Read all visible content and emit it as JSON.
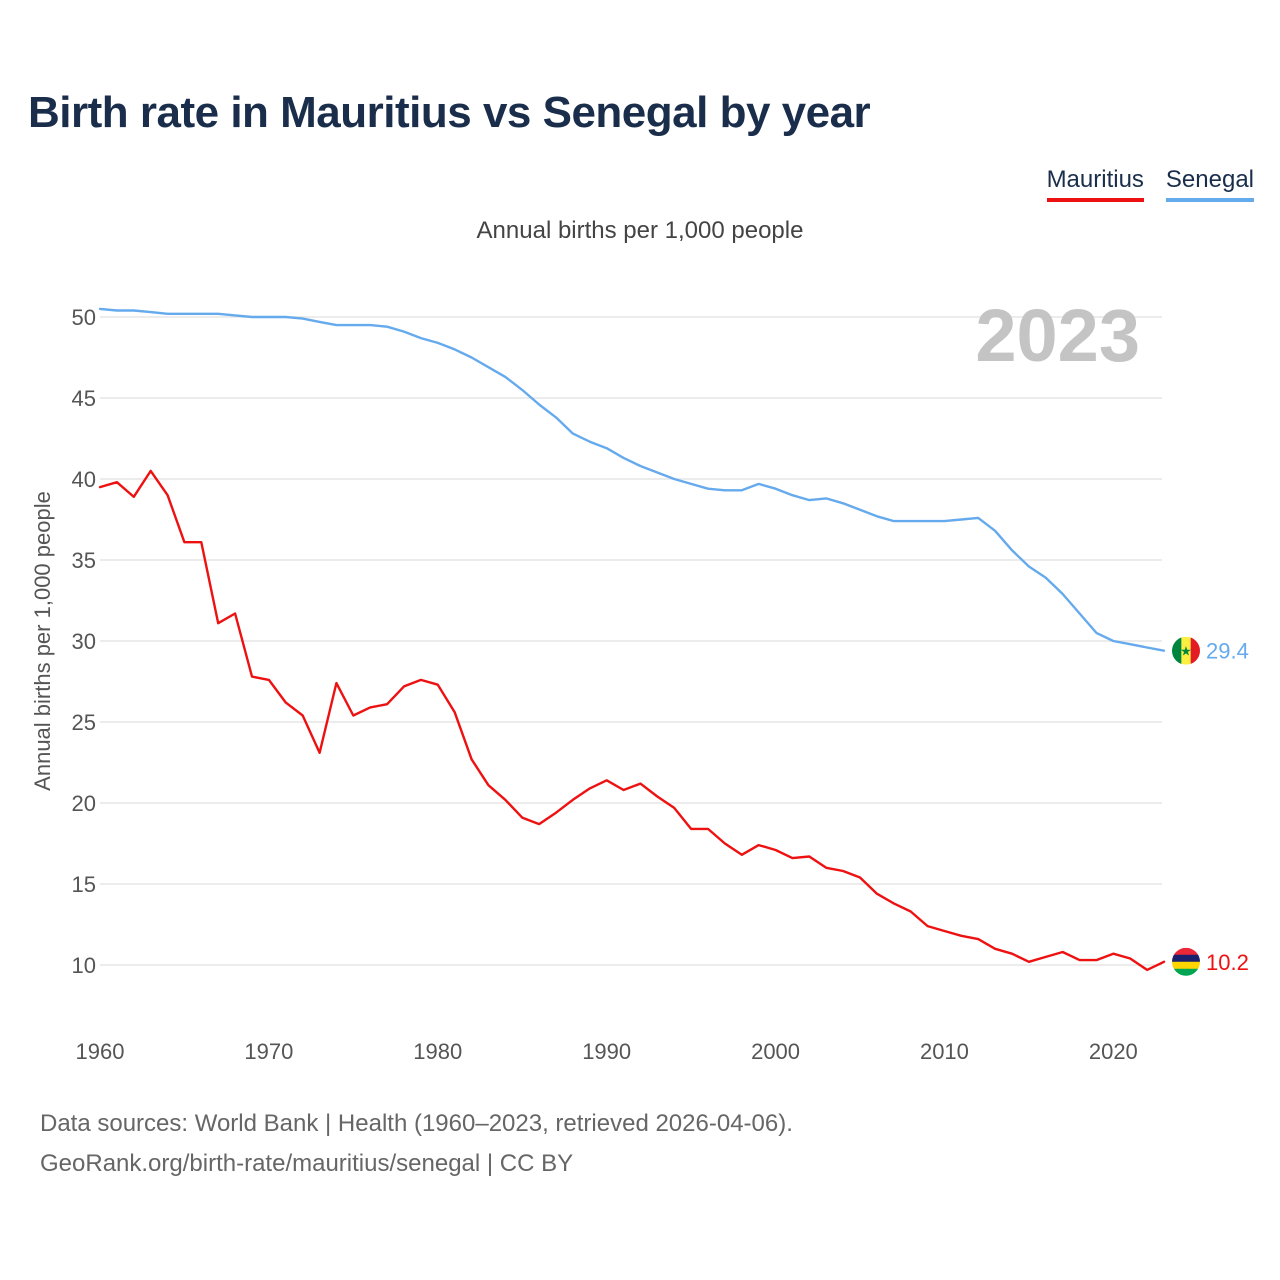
{
  "title": "Birth rate in Mauritius vs Senegal by year",
  "legend": [
    {
      "name": "Mauritius",
      "color": "#ee1111"
    },
    {
      "name": "Senegal",
      "color": "#66aaee"
    }
  ],
  "footer": {
    "line1": "Data sources: World Bank | Health (1960–2023, retrieved 2026-04-06).",
    "line2": "GeoRank.org/birth-rate/mauritius/senegal | CC BY"
  },
  "chart_data": {
    "type": "line",
    "title": "Birth rate in Mauritius vs Senegal by year",
    "subtitle": "Annual births per 1,000 people",
    "xlabel": "",
    "ylabel": "Annual births per 1,000 people",
    "year_label": "2023",
    "xlim": [
      1960,
      2023
    ],
    "ylim": [
      7,
      52
    ],
    "x_ticks": [
      1960,
      1970,
      1980,
      1990,
      2000,
      2010,
      2020
    ],
    "y_ticks": [
      10,
      15,
      20,
      25,
      30,
      35,
      40,
      45,
      50
    ],
    "grid": true,
    "legend_position": "top-right",
    "x": [
      1960,
      1961,
      1962,
      1963,
      1964,
      1965,
      1966,
      1967,
      1968,
      1969,
      1970,
      1971,
      1972,
      1973,
      1974,
      1975,
      1976,
      1977,
      1978,
      1979,
      1980,
      1981,
      1982,
      1983,
      1984,
      1985,
      1986,
      1987,
      1988,
      1989,
      1990,
      1991,
      1992,
      1993,
      1994,
      1995,
      1996,
      1997,
      1998,
      1999,
      2000,
      2001,
      2002,
      2003,
      2004,
      2005,
      2006,
      2007,
      2008,
      2009,
      2010,
      2011,
      2012,
      2013,
      2014,
      2015,
      2016,
      2017,
      2018,
      2019,
      2020,
      2021,
      2022,
      2023
    ],
    "series": [
      {
        "name": "Mauritius",
        "color": "#ee1111",
        "end_label": "10.2",
        "values": [
          39.5,
          39.8,
          38.9,
          40.5,
          39.0,
          36.1,
          36.1,
          31.1,
          31.7,
          27.8,
          27.6,
          26.2,
          25.4,
          23.1,
          27.4,
          25.4,
          25.9,
          26.1,
          27.2,
          27.6,
          27.3,
          25.6,
          22.7,
          21.1,
          20.2,
          19.1,
          18.7,
          19.4,
          20.2,
          20.9,
          21.4,
          20.8,
          21.2,
          20.4,
          19.7,
          18.4,
          18.4,
          17.5,
          16.8,
          17.4,
          17.1,
          16.6,
          16.7,
          16.0,
          15.8,
          15.4,
          14.4,
          13.8,
          13.3,
          12.4,
          12.1,
          11.8,
          11.6,
          11.0,
          10.7,
          10.2,
          10.5,
          10.8,
          10.3,
          10.3,
          10.7,
          10.4,
          9.7,
          10.2
        ]
      },
      {
        "name": "Senegal",
        "color": "#66aaee",
        "end_label": "29.4",
        "values": [
          50.5,
          50.4,
          50.4,
          50.3,
          50.2,
          50.2,
          50.2,
          50.2,
          50.1,
          50.0,
          50.0,
          50.0,
          49.9,
          49.7,
          49.5,
          49.5,
          49.5,
          49.4,
          49.1,
          48.7,
          48.4,
          48.0,
          47.5,
          46.9,
          46.3,
          45.5,
          44.6,
          43.8,
          42.8,
          42.3,
          41.9,
          41.3,
          40.8,
          40.4,
          40.0,
          39.7,
          39.4,
          39.3,
          39.3,
          39.7,
          39.4,
          39.0,
          38.7,
          38.8,
          38.5,
          38.1,
          37.7,
          37.4,
          37.4,
          37.4,
          37.4,
          37.5,
          37.6,
          36.8,
          35.6,
          34.6,
          33.9,
          32.9,
          31.7,
          30.5,
          30.0,
          29.8,
          29.6,
          29.4
        ]
      }
    ]
  }
}
